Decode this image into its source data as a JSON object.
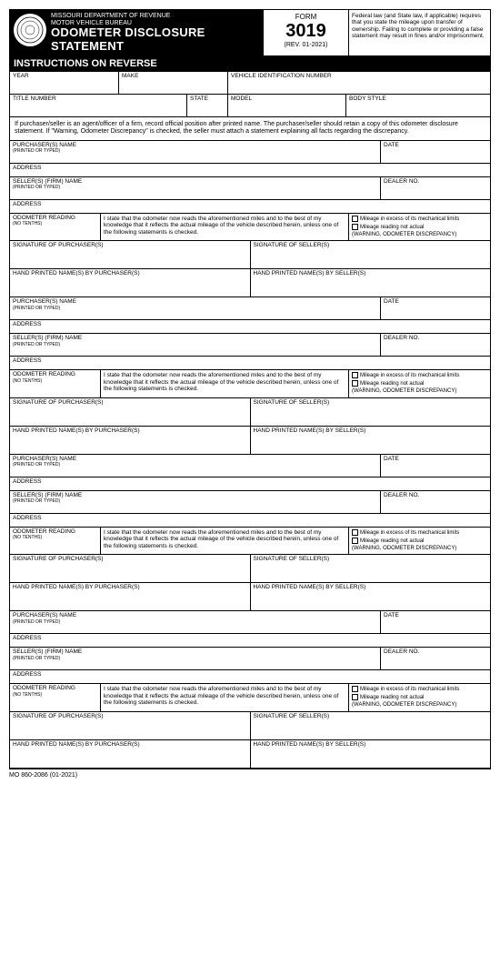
{
  "header": {
    "dept1": "MISSOURI DEPARTMENT OF REVENUE",
    "dept2": "MOTOR VEHICLE BUREAU",
    "title1": "ODOMETER DISCLOSURE",
    "title2": "STATEMENT",
    "formLbl": "FORM",
    "formNum": "3019",
    "rev": "(REV. 01-2021)",
    "legal": "Federal law (and State law, if applicable) requires that you state the mileage upon transfer of ownership. Failing to complete or providing a false statement may result in fines and/or imprisonment."
  },
  "instr": "INSTRUCTIONS ON REVERSE",
  "veh": {
    "year": "YEAR",
    "make": "MAKE",
    "vin": "VEHICLE IDENTIFICATION NUMBER",
    "titleNum": "TITLE NUMBER",
    "state": "STATE",
    "model": "MODEL",
    "body": "BODY STYLE"
  },
  "note": "If purchaser/seller is an agent/officer of a firm, record official position after printed name. The purchaser/seller should retain a copy of this odometer disclosure statement. If \"Warning, Odometer Discrepancy\" is checked, the seller must attach a statement explaining all facts regarding the discrepancy.",
  "blk": {
    "purchName": "PURCHASER(S) NAME",
    "sellName": "SELLER(S) (FIRM) NAME",
    "printed": "(PRINTED OR TYPED)",
    "addr": "ADDRESS",
    "date": "DATE",
    "dealer": "DEALER NO.",
    "odoLbl": "ODOMETER READING",
    "noTenths": "(NO TENTHS)",
    "stmt": "I state that the odometer now reads the aforementioned miles and to the best of my knowledge that it reflects the actual mileage of the vehicle described herein, unless one of the following statements is checked.",
    "chk1": "Mileage in excess of its mechanical limits",
    "chk2": "Mileage reading not actual",
    "warn": "(WARNING, ODOMETER DISCREPANCY)",
    "sigP": "SIGNATURE OF PURCHASER(S)",
    "sigS": "SIGNATURE OF SELLER(S)",
    "handP": "HAND PRINTED NAME(S) BY PURCHASER(S)",
    "handS": "HAND PRINTED NAME(S) BY SELLER(S)"
  },
  "footer": "MO 860-2086 (01-2021)"
}
